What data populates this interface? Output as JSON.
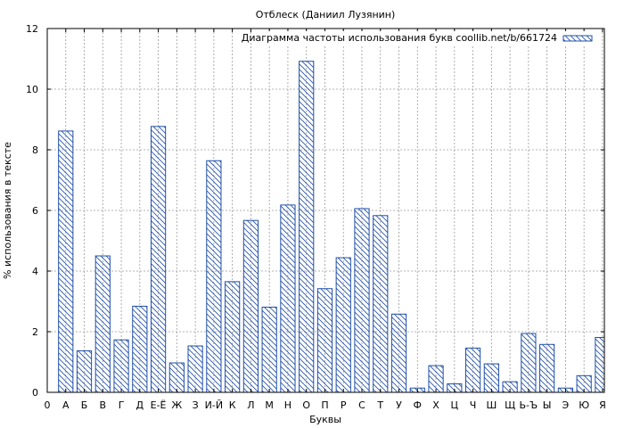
{
  "chart_data": {
    "type": "bar",
    "title": "Отблеск (Даниил Лузянин)",
    "xlabel": "Буквы",
    "ylabel": "% использования в тексте",
    "legend": {
      "label": "Диаграмма частоты использования букв coollib.net/b/661724",
      "placement": "top-right"
    },
    "grid": true,
    "ylim": [
      0,
      12
    ],
    "yticks": [
      0,
      2,
      4,
      6,
      8,
      10,
      12
    ],
    "xlim_start_label": "0",
    "categories": [
      "А",
      "Б",
      "В",
      "Г",
      "Д",
      "Е-Ё",
      "Ж",
      "З",
      "И-Й",
      "К",
      "Л",
      "М",
      "Н",
      "О",
      "П",
      "Р",
      "С",
      "Т",
      "У",
      "Ф",
      "Х",
      "Ц",
      "Ч",
      "Ш",
      "Щ",
      "Ь-Ъ",
      "Ы",
      "Э",
      "Ю",
      "Я"
    ],
    "values": [
      8.62,
      1.37,
      4.5,
      1.73,
      2.84,
      8.77,
      0.97,
      1.53,
      7.64,
      3.65,
      5.67,
      2.81,
      6.18,
      10.92,
      3.42,
      4.44,
      6.06,
      5.83,
      2.58,
      0.14,
      0.88,
      0.28,
      1.46,
      0.94,
      0.35,
      1.94,
      1.58,
      0.14,
      0.55,
      1.81
    ],
    "colors": {
      "bar_stroke": "#1f4fa8",
      "hatch": "#1f4fa8",
      "grid": "#9a9a9a"
    }
  }
}
